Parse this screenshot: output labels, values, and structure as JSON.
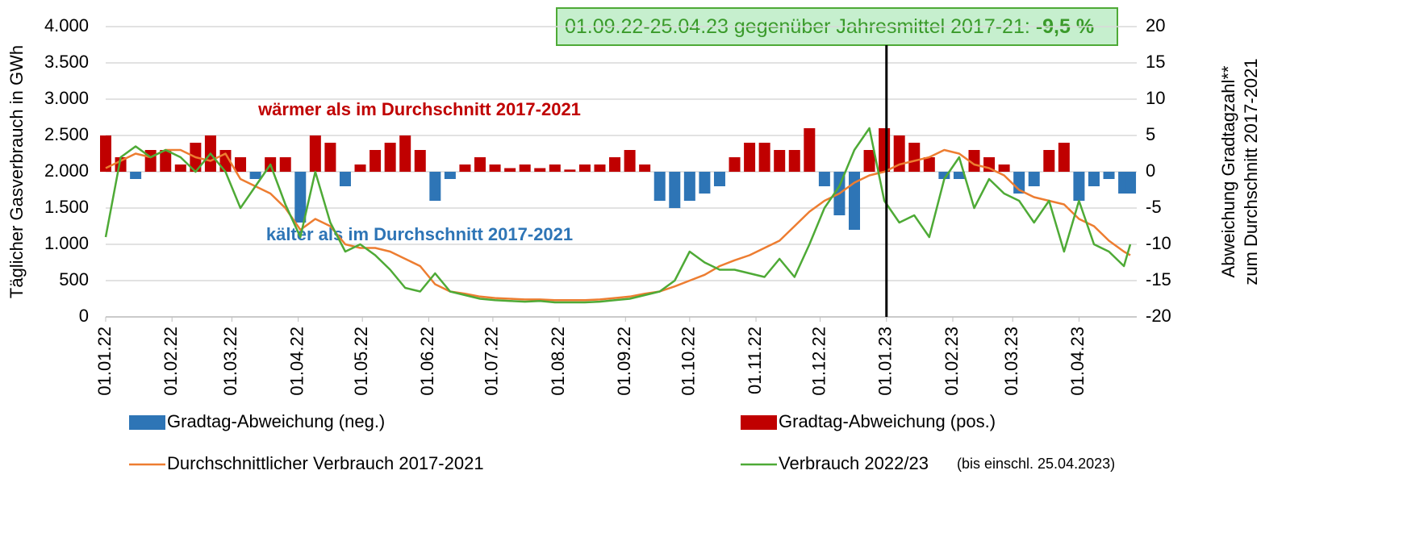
{
  "chart_data": {
    "type": "combo",
    "ylabel": "Täglicher Gasverbrauch in GWh",
    "y2label": [
      "Abweichung Gradtagzahl**",
      "zum Durchschnitt 2017-2021"
    ],
    "annotation": {
      "text": "01.09.22-25.04.23 gegenüber Jahresmittel 2017-21:",
      "value_label": "-9,5 %"
    },
    "warm_label": "wärmer als im Durchschnitt 2017-2021",
    "cold_label": "kälter als im Durchschnitt 2017-2021",
    "legend_note": "(bis einschl. 25.04.2023)",
    "vline": "01.01.23",
    "xlim": [
      "01.01.22",
      "28.04.23"
    ],
    "xticks": [
      "01.01.22",
      "01.02.22",
      "01.03.22",
      "01.04.22",
      "01.05.22",
      "01.06.22",
      "01.07.22",
      "01.08.22",
      "01.09.22",
      "01.10.22",
      "01.11.22",
      "01.12.22",
      "01.01.23",
      "01.02.23",
      "01.03.23",
      "01.04.23"
    ],
    "ylim": [
      0,
      4000
    ],
    "yticks": [
      0,
      500,
      {
        "value": 1000,
        "label": "1.000"
      },
      {
        "value": 1500,
        "label": "1.500"
      },
      {
        "value": 2000,
        "label": "2.000"
      },
      {
        "value": 2500,
        "label": "2.500"
      },
      {
        "value": 3000,
        "label": "3.000"
      },
      {
        "value": 3500,
        "label": "3.500"
      },
      {
        "value": 4000,
        "label": "4.000"
      }
    ],
    "y2lim": [
      -20,
      20
    ],
    "y2ticks": [
      -20,
      -15,
      -10,
      -5,
      0,
      5,
      10,
      15,
      20
    ],
    "x": [
      "01.01.22",
      "08.01.22",
      "15.01.22",
      "22.01.22",
      "29.01.22",
      "05.02.22",
      "12.02.22",
      "19.02.22",
      "26.02.22",
      "05.03.22",
      "12.03.22",
      "19.03.22",
      "26.03.22",
      "02.04.22",
      "09.04.22",
      "16.04.22",
      "23.04.22",
      "30.04.22",
      "07.05.22",
      "14.05.22",
      "21.05.22",
      "28.05.22",
      "04.06.22",
      "11.06.22",
      "18.06.22",
      "25.06.22",
      "02.07.22",
      "09.07.22",
      "16.07.22",
      "23.07.22",
      "30.07.22",
      "06.08.22",
      "13.08.22",
      "20.08.22",
      "27.08.22",
      "03.09.22",
      "10.09.22",
      "17.09.22",
      "24.09.22",
      "01.10.22",
      "08.10.22",
      "15.10.22",
      "22.10.22",
      "29.10.22",
      "05.11.22",
      "12.11.22",
      "19.11.22",
      "26.11.22",
      "03.12.22",
      "10.12.22",
      "17.12.22",
      "24.12.22",
      "31.12.22",
      "07.01.23",
      "14.01.23",
      "21.01.23",
      "28.01.23",
      "04.02.23",
      "11.02.23",
      "18.02.23",
      "25.02.23",
      "04.03.23",
      "11.03.23",
      "18.03.23",
      "25.03.23",
      "01.04.23",
      "08.04.23",
      "15.04.23",
      "22.04.23",
      "25.04.23"
    ],
    "series": [
      {
        "name": "Gradtag-Abweichung (neg.)",
        "type": "bar",
        "axis": "y2",
        "color": "#2e75b6",
        "values": [
          null,
          null,
          -1,
          null,
          null,
          null,
          null,
          null,
          null,
          null,
          -1,
          null,
          null,
          -7,
          null,
          null,
          -2,
          null,
          null,
          null,
          null,
          null,
          -4,
          -1,
          null,
          null,
          null,
          null,
          null,
          null,
          null,
          null,
          null,
          null,
          null,
          null,
          null,
          -4,
          -5,
          -4,
          -3,
          -2,
          null,
          null,
          null,
          null,
          null,
          null,
          -2,
          -6,
          -8,
          null,
          null,
          null,
          null,
          null,
          -1,
          -1,
          null,
          null,
          null,
          -3,
          -2,
          null,
          null,
          -4,
          -2,
          -1,
          -3,
          -3
        ]
      },
      {
        "name": "Gradtag-Abweichung (pos.)",
        "type": "bar",
        "axis": "y2",
        "color": "#c00000",
        "values": [
          5,
          2,
          null,
          3,
          3,
          1,
          4,
          5,
          3,
          2,
          null,
          2,
          2,
          null,
          5,
          4,
          null,
          1,
          3,
          4,
          5,
          3,
          null,
          null,
          1,
          2,
          1,
          0.5,
          1,
          0.5,
          1,
          0.3,
          1,
          1,
          2,
          3,
          1,
          null,
          null,
          null,
          null,
          null,
          2,
          4,
          4,
          3,
          3,
          6,
          null,
          null,
          null,
          3,
          6,
          5,
          4,
          2,
          null,
          null,
          3,
          2,
          1,
          null,
          null,
          3,
          4,
          null,
          null,
          null,
          null,
          null
        ]
      },
      {
        "name": "Durchschnittlicher Verbrauch 2017-2021",
        "type": "line",
        "color": "#ed7d31",
        "values": [
          2050,
          2150,
          2250,
          2200,
          2300,
          2300,
          2200,
          2150,
          2250,
          1900,
          1800,
          1700,
          1500,
          1200,
          1350,
          1250,
          1000,
          950,
          950,
          900,
          800,
          700,
          450,
          350,
          320,
          280,
          260,
          250,
          240,
          240,
          230,
          230,
          230,
          240,
          260,
          280,
          320,
          350,
          420,
          500,
          580,
          700,
          780,
          850,
          950,
          1050,
          1250,
          1450,
          1600,
          1700,
          1850,
          1950,
          2000,
          2100,
          2150,
          2200,
          2300,
          2250,
          2100,
          2050,
          1950,
          1750,
          1650,
          1600,
          1550,
          1350,
          1250,
          1050,
          900,
          850
        ]
      },
      {
        "name": "Verbrauch 2022/23",
        "type": "line",
        "color": "#4eaa36",
        "values": [
          1100,
          2200,
          2350,
          2200,
          2300,
          2200,
          2000,
          2250,
          2000,
          1500,
          1800,
          2100,
          1550,
          1100,
          2000,
          1300,
          900,
          1000,
          850,
          650,
          400,
          350,
          600,
          350,
          300,
          250,
          230,
          220,
          210,
          220,
          200,
          200,
          200,
          210,
          230,
          250,
          300,
          350,
          500,
          900,
          750,
          650,
          650,
          600,
          550,
          800,
          550,
          1000,
          1500,
          1800,
          2300,
          2600,
          1600,
          1300,
          1400,
          1100,
          1900,
          2200,
          1500,
          1900,
          1700,
          1600,
          1300,
          1600,
          900,
          1600,
          1000,
          900,
          700,
          1000
        ]
      }
    ]
  }
}
